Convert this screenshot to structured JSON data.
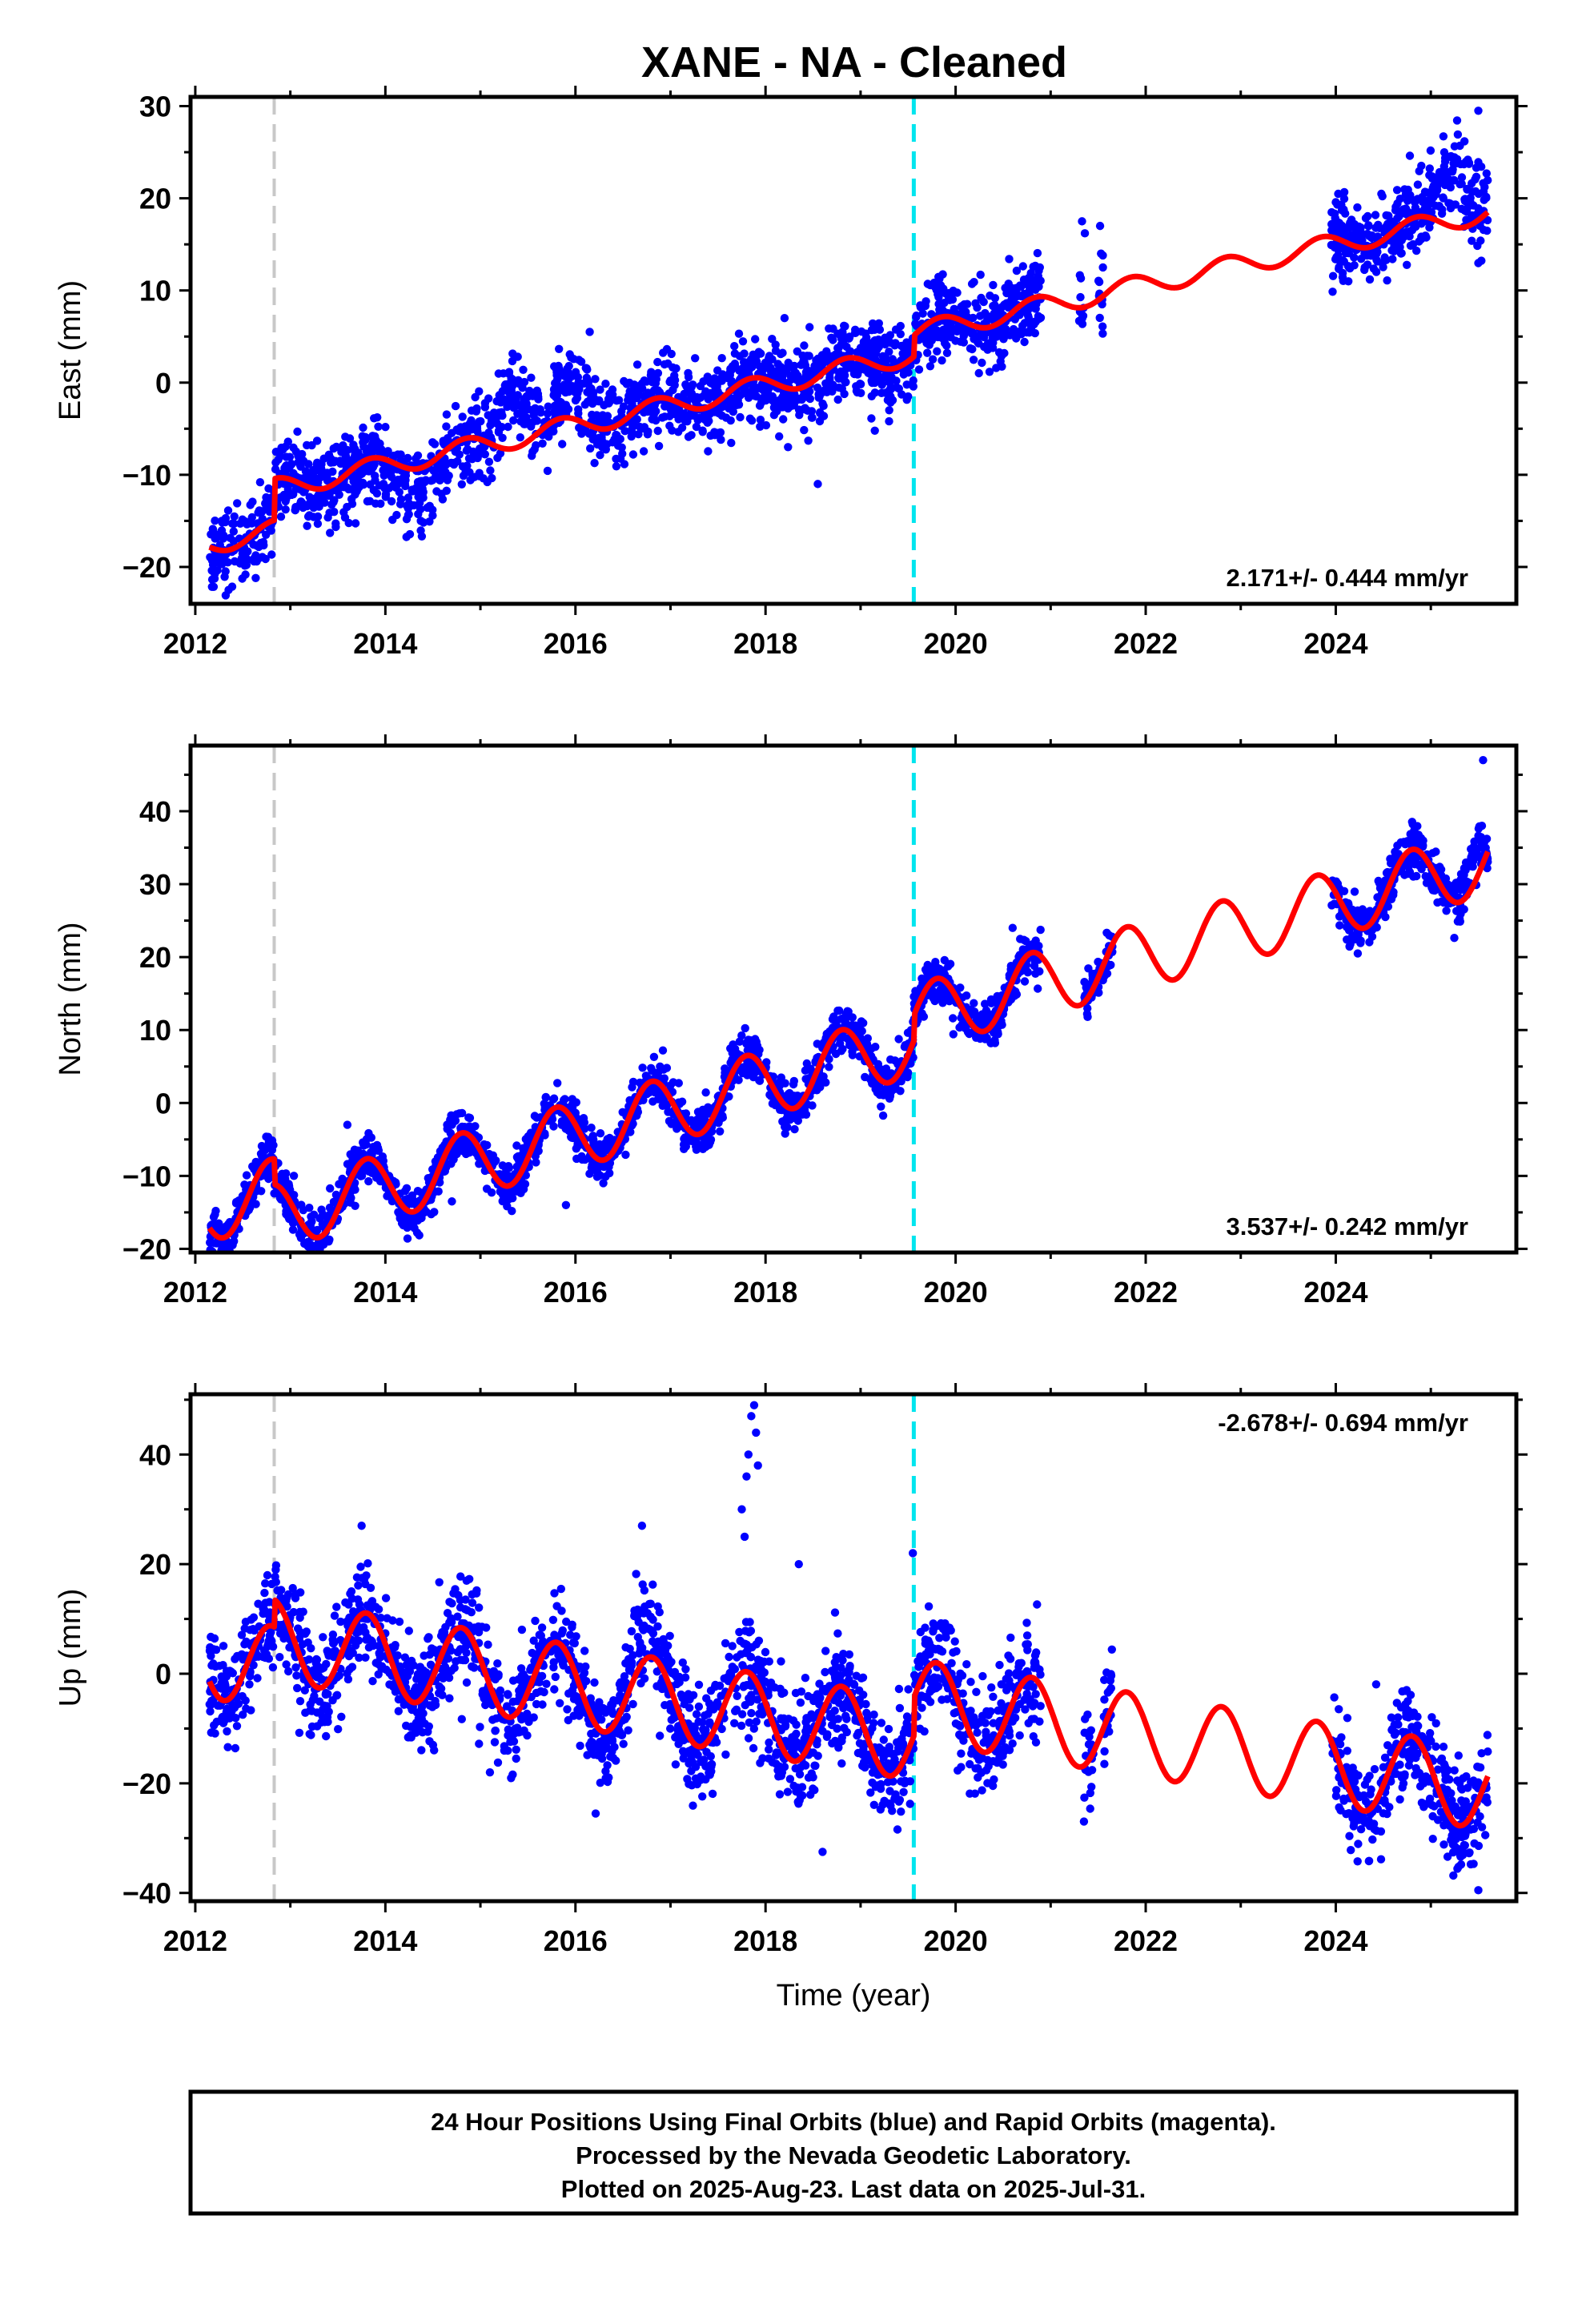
{
  "title": "XANE  - NA - Cleaned",
  "footer": {
    "lines": [
      "24 Hour Positions Using Final Orbits (blue) and Rapid Orbits (magenta).",
      "Processed by the Nevada Geodetic Laboratory.",
      "Plotted on 2025-Aug-23. Last data on 2025-Jul-31."
    ]
  },
  "colors": {
    "points": "#0000ff",
    "model": "#ff0000",
    "equipment_change": "#c8c8c8",
    "cyan_event": "#00e5ee",
    "frame": "#000000"
  },
  "chart_data": [
    {
      "type": "scatter",
      "component": "East",
      "ylabel": "East (mm)",
      "xlabel": "",
      "xlim": [
        2011.95,
        2025.9
      ],
      "ylim": [
        -24,
        31
      ],
      "xticks": [
        2012,
        2014,
        2016,
        2018,
        2020,
        2022,
        2024
      ],
      "yticks": [
        -20,
        -10,
        0,
        10,
        20,
        30
      ],
      "rate": "2.171+/- 0.444 mm/yr",
      "rate_position": "bottom-right",
      "events": [
        {
          "x": 2012.83,
          "color": "gray"
        },
        {
          "x": 2019.56,
          "color": "cyan"
        }
      ],
      "data_spans": [
        [
          2012.15,
          2020.9
        ],
        [
          2021.3,
          2021.35
        ],
        [
          2021.5,
          2021.55
        ],
        [
          2023.95,
          2025.6
        ]
      ],
      "model": {
        "t0": 2012.15,
        "offset0": -17.5,
        "rate": 2.171,
        "annual_amp": 1.1,
        "annual_phase": 0.6,
        "steps": [
          {
            "x": 2012.83,
            "size": 4.5
          },
          {
            "x": 2019.56,
            "size": 2.3
          }
        ]
      },
      "scatter_noise": 2.2,
      "anomalies": [
        {
          "range": [
            2013.95,
            2014.75
          ],
          "offset": -2.5
        },
        {
          "range": [
            2015.1,
            2015.6
          ],
          "offset": 6
        },
        {
          "range": [
            2015.7,
            2016.25
          ],
          "offset": 4
        },
        {
          "range": [
            2024.9,
            2025.6
          ],
          "offset": 5
        }
      ],
      "outliers": [
        {
          "x": 2021.33,
          "y": 17.5
        },
        {
          "x": 2021.36,
          "y": 16.2
        },
        {
          "x": 2021.52,
          "y": 17
        },
        {
          "x": 2021.53,
          "y": 14
        },
        {
          "x": 2021.55,
          "y": 12.5
        },
        {
          "x": 2018.55,
          "y": -11
        },
        {
          "x": 2018.45,
          "y": -6.3
        },
        {
          "x": 2012.35,
          "y": -22.5
        },
        {
          "x": 2016.15,
          "y": 5.5
        },
        {
          "x": 2025.5,
          "y": 29.5
        },
        {
          "x": 2019.5,
          "y": -1.5
        },
        {
          "x": 2018.2,
          "y": 7
        }
      ]
    },
    {
      "type": "scatter",
      "component": "North",
      "ylabel": "North (mm)",
      "xlabel": "",
      "xlim": [
        2011.95,
        2025.9
      ],
      "ylim": [
        -20.5,
        49
      ],
      "xticks": [
        2012,
        2014,
        2016,
        2018,
        2020,
        2022,
        2024
      ],
      "yticks": [
        -20,
        -10,
        0,
        10,
        20,
        30,
        40
      ],
      "rate": "3.537+/- 0.242 mm/yr",
      "rate_position": "bottom-right",
      "events": [
        {
          "x": 2012.83,
          "color": "gray"
        },
        {
          "x": 2019.56,
          "color": "cyan"
        }
      ],
      "data_spans": [
        [
          2012.15,
          2020.9
        ],
        [
          2021.35,
          2021.65
        ],
        [
          2023.95,
          2025.6
        ]
      ],
      "model": {
        "t0": 2012.15,
        "offset0": -14.5,
        "rate": 3.537,
        "annual_amp": 4.5,
        "annual_phase": 0.55,
        "steps": [
          {
            "x": 2012.83,
            "size": -3.5
          },
          {
            "x": 2019.56,
            "size": 3.5
          }
        ]
      },
      "scatter_noise": 1.6,
      "anomalies": [
        {
          "range": [
            2025.3,
            2025.6
          ],
          "offset": 4
        }
      ],
      "outliers": [
        {
          "x": 2015.9,
          "y": -14
        },
        {
          "x": 2014.7,
          "y": -13.5
        },
        {
          "x": 2012.95,
          "y": -14
        },
        {
          "x": 2018.3,
          "y": 3
        },
        {
          "x": 2019.4,
          "y": 3
        },
        {
          "x": 2020.6,
          "y": 24
        },
        {
          "x": 2025.55,
          "y": 47
        },
        {
          "x": 2013.6,
          "y": -3
        }
      ]
    },
    {
      "type": "scatter",
      "component": "Up",
      "ylabel": "Up (mm)",
      "xlabel": "Time (year)",
      "xlim": [
        2011.95,
        2025.9
      ],
      "ylim": [
        -41.5,
        51
      ],
      "xticks": [
        2012,
        2014,
        2016,
        2018,
        2020,
        2022,
        2024
      ],
      "yticks": [
        -40,
        -20,
        0,
        20,
        40
      ],
      "rate": "-2.678+/- 0.694 mm/yr",
      "rate_position": "top-right",
      "events": [
        {
          "x": 2012.83,
          "color": "gray"
        },
        {
          "x": 2019.56,
          "color": "cyan"
        }
      ],
      "data_spans": [
        [
          2012.15,
          2020.9
        ],
        [
          2021.35,
          2021.45
        ],
        [
          2021.55,
          2021.65
        ],
        [
          2023.95,
          2025.6
        ]
      ],
      "model": {
        "t0": 2012.15,
        "offset0": 3,
        "rate": -2.678,
        "annual_amp": 7.5,
        "annual_phase": 0.55,
        "steps": [
          {
            "x": 2012.83,
            "size": 5
          },
          {
            "x": 2019.56,
            "size": 7
          }
        ]
      },
      "scatter_noise": 4.8,
      "anomalies": [
        {
          "range": [
            2016.5,
            2016.9
          ],
          "offset": 6
        }
      ],
      "outliers": [
        {
          "x": 2017.85,
          "y": 47
        },
        {
          "x": 2017.88,
          "y": 49
        },
        {
          "x": 2017.9,
          "y": 44
        },
        {
          "x": 2017.82,
          "y": 40
        },
        {
          "x": 2017.8,
          "y": 36
        },
        {
          "x": 2017.92,
          "y": 38
        },
        {
          "x": 2017.75,
          "y": 30
        },
        {
          "x": 2017.78,
          "y": 25
        },
        {
          "x": 2018.6,
          "y": -32.5
        },
        {
          "x": 2018.15,
          "y": -22
        },
        {
          "x": 2018.2,
          "y": -17
        },
        {
          "x": 2015.1,
          "y": -18
        },
        {
          "x": 2025.5,
          "y": -39.5
        },
        {
          "x": 2024.3,
          "y": -27
        },
        {
          "x": 2013.75,
          "y": 27
        },
        {
          "x": 2016.7,
          "y": 27
        },
        {
          "x": 2019.55,
          "y": 22
        },
        {
          "x": 2018.35,
          "y": 20
        }
      ]
    }
  ]
}
